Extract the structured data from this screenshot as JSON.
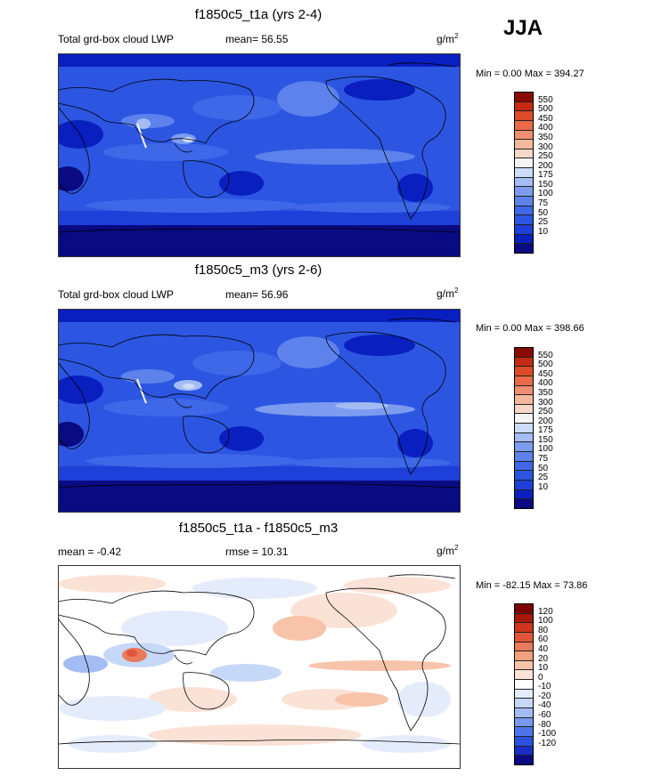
{
  "season": "JJA",
  "colors": {
    "lwp": [
      "#0a0a82",
      "#0a1fc0",
      "#1e3fd8",
      "#2c56e2",
      "#3f68e8",
      "#5d82ec",
      "#7d9cf0",
      "#a4bcf4",
      "#cbdcf8",
      "#f4f4f4",
      "#f6d8c8",
      "#f4b89e",
      "#f08e70",
      "#e86a48",
      "#dd4a28",
      "#c42a12",
      "#8c0a04"
    ],
    "diff": [
      "#0a0a82",
      "#1a2cc8",
      "#2d50e0",
      "#4d74ea",
      "#7898f0",
      "#a3bcf4",
      "#c6d8f8",
      "#e4ecfc",
      "#ffffff",
      "#fbe2d6",
      "#f7c4aa",
      "#f1a080",
      "#ea7a5a",
      "#e0553a",
      "#cf341c",
      "#a81808",
      "#7c0202"
    ]
  },
  "panels": [
    {
      "title": "f1850c5_t1a (yrs 2-4)",
      "left_label": "Total grd-box cloud LWP",
      "mean_label": "mean=  56.55",
      "units": "g/m",
      "units_sup": "2",
      "minmax": "Min =   0.00 Max = 394.27",
      "ticks": [
        "550",
        "500",
        "450",
        "400",
        "350",
        "300",
        "250",
        "200",
        "175",
        "150",
        "100",
        "75",
        "50",
        "25",
        "10"
      ]
    },
    {
      "title": "f1850c5_m3 (yrs 2-6)",
      "left_label": "Total grd-box cloud LWP",
      "mean_label": "mean=  56.96",
      "units": "g/m",
      "units_sup": "2",
      "minmax": "Min =   0.00 Max = 398.66",
      "ticks": [
        "550",
        "500",
        "450",
        "400",
        "350",
        "300",
        "250",
        "200",
        "175",
        "150",
        "100",
        "75",
        "50",
        "25",
        "10"
      ]
    },
    {
      "title": "f1850c5_t1a - f1850c5_m3",
      "left_label": "mean =  -0.42",
      "mean_label": "rmse =  10.31",
      "units": "g/m",
      "units_sup": "2",
      "minmax": "Min = -82.15 Max =  73.86",
      "ticks": [
        "120",
        "100",
        "80",
        "60",
        "40",
        "20",
        "10",
        "0",
        "-10",
        "-20",
        "-40",
        "-60",
        "-80",
        "-100",
        "-120"
      ]
    }
  ]
}
